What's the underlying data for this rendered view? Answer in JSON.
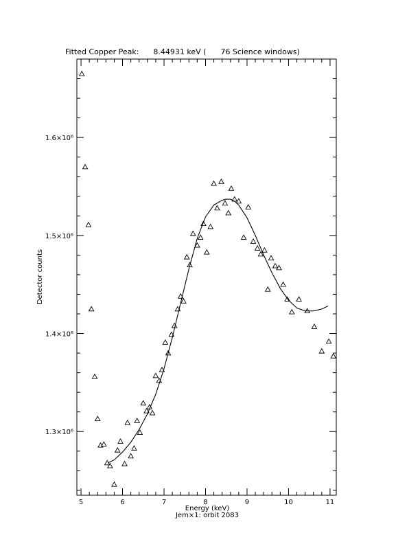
{
  "chart_data": {
    "type": "scatter",
    "title": "Fitted Copper Peak:      8.44931 keV (      76 Science windows)",
    "xlabel": "Energy (keV)",
    "ylabel": "Detector counts",
    "subtitle": "Jem×1: orbit 2083",
    "xlim": [
      4.9,
      11.15
    ],
    "ylim": [
      1.235,
      1.68
    ],
    "y_scale_note": "×10^6",
    "x_ticks": [
      5,
      6,
      7,
      8,
      9,
      10,
      11
    ],
    "x_tick_labels": [
      "5",
      "6",
      "7",
      "8",
      "9",
      "10",
      "11"
    ],
    "y_ticks": [
      1.3,
      1.4,
      1.5,
      1.6
    ],
    "y_tick_labels": [
      "1.3×10⁶",
      "1.4×10⁶",
      "1.5×10⁶",
      "1.6×10⁶"
    ],
    "grid": false,
    "series": [
      {
        "marker": "triangle",
        "x": [
          5.02,
          5.1,
          5.18,
          5.25,
          5.33,
          5.4,
          5.47,
          5.55,
          5.63,
          5.7,
          5.8,
          5.88,
          5.95,
          6.05,
          6.12,
          6.2,
          6.28,
          6.35,
          6.42,
          6.5,
          6.58,
          6.65,
          6.72,
          6.8,
          6.88,
          6.95,
          7.03,
          7.1,
          7.18,
          7.25,
          7.33,
          7.4,
          7.47,
          7.55,
          7.62,
          7.7,
          7.8,
          7.88,
          7.95,
          8.03,
          8.12,
          8.2,
          8.28,
          8.38,
          8.47,
          8.55,
          8.62,
          8.7,
          8.8,
          8.92,
          9.03,
          9.15,
          9.25,
          9.33,
          9.42,
          9.5,
          9.58,
          9.68,
          9.77,
          9.87,
          9.97,
          10.08,
          10.25,
          10.45,
          10.62,
          10.8,
          10.97,
          11.08
        ],
        "y": [
          1.665,
          1.57,
          1.511,
          1.425,
          1.356,
          1.313,
          1.286,
          1.287,
          1.268,
          1.265,
          1.246,
          1.281,
          1.29,
          1.267,
          1.309,
          1.275,
          1.283,
          1.311,
          1.299,
          1.329,
          1.321,
          1.325,
          1.319,
          1.357,
          1.352,
          1.363,
          1.391,
          1.38,
          1.399,
          1.408,
          1.425,
          1.438,
          1.433,
          1.478,
          1.47,
          1.502,
          1.49,
          1.498,
          1.512,
          1.483,
          1.509,
          1.553,
          1.528,
          1.555,
          1.533,
          1.523,
          1.548,
          1.537,
          1.535,
          1.498,
          1.529,
          1.494,
          1.487,
          1.481,
          1.485,
          1.445,
          1.477,
          1.469,
          1.467,
          1.45,
          1.435,
          1.422,
          1.435,
          1.423,
          1.407,
          1.382,
          1.392,
          1.377
        ]
      },
      {
        "style": "line",
        "x": [
          5.65,
          5.8,
          6.0,
          6.2,
          6.4,
          6.6,
          6.8,
          7.0,
          7.2,
          7.4,
          7.6,
          7.8,
          8.0,
          8.2,
          8.4,
          8.5,
          8.6,
          8.7,
          8.8,
          9.0,
          9.2,
          9.4,
          9.6,
          9.8,
          10.0,
          10.2,
          10.4,
          10.6,
          10.8,
          10.95
        ],
        "y": [
          1.268,
          1.271,
          1.279,
          1.289,
          1.302,
          1.318,
          1.338,
          1.364,
          1.396,
          1.431,
          1.466,
          1.497,
          1.519,
          1.531,
          1.536,
          1.537,
          1.537,
          1.535,
          1.531,
          1.518,
          1.5,
          1.48,
          1.462,
          1.446,
          1.434,
          1.426,
          1.423,
          1.423,
          1.425,
          1.428
        ]
      }
    ]
  }
}
